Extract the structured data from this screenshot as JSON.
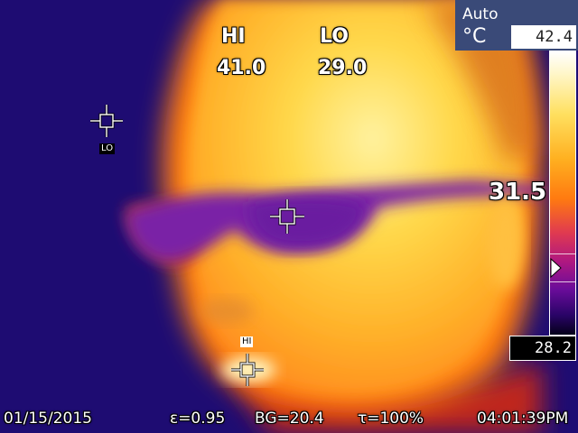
{
  "overlay": {
    "hi_label": "HI",
    "lo_label": "LO",
    "hi_value": "41.0",
    "lo_value": "29.0",
    "center_temp": "31.5"
  },
  "markers": {
    "lo_tag": "LO",
    "hi_tag": "HI"
  },
  "scale": {
    "mode": "Auto",
    "unit": "°C",
    "max": "42.4",
    "min": "28.2",
    "center_fraction": 0.775
  },
  "status": {
    "date": "01/15/2015",
    "emissivity": "ε=0.95",
    "background": "BG=20.4",
    "transmission": "τ=100%",
    "time": "04:01:39PM"
  },
  "colors": {
    "hot": "#ffffff",
    "warm": "#ffd040",
    "mid": "#ff7a10",
    "cool": "#8a1aa8",
    "cold": "#1a0a6a"
  }
}
